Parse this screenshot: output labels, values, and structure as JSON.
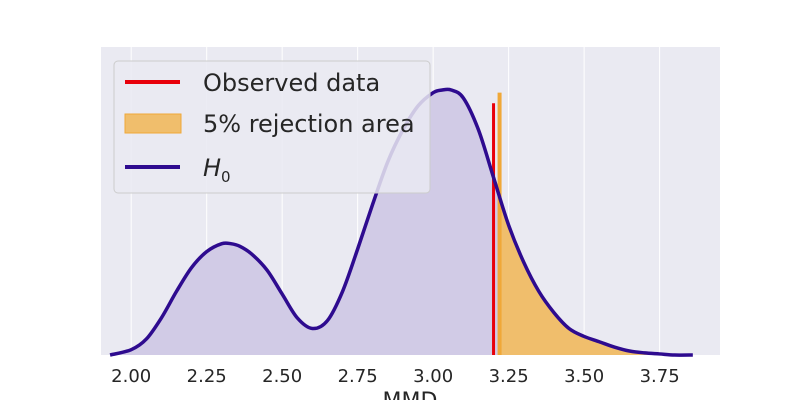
{
  "chart_data": {
    "type": "area",
    "title": "",
    "xlabel": "MMD",
    "ylabel": "",
    "xlim": [
      1.9,
      3.95
    ],
    "ylim": [
      0,
      1.0
    ],
    "x_ticks": [
      "2.00",
      "2.25",
      "2.50",
      "2.75",
      "3.00",
      "3.25",
      "3.50",
      "3.75"
    ],
    "x_tick_values": [
      2.0,
      2.25,
      2.5,
      2.75,
      3.0,
      3.25,
      3.5,
      3.75
    ],
    "grid": true,
    "legend_position": "top-left",
    "series": [
      {
        "name": "H_0",
        "label_main": "H",
        "label_sub": "0",
        "type": "density",
        "color": "#2e0b8f",
        "fill_color": "#d1cbe6",
        "x": [
          1.93,
          2.0,
          2.05,
          2.1,
          2.15,
          2.2,
          2.25,
          2.3,
          2.33,
          2.36,
          2.4,
          2.45,
          2.5,
          2.55,
          2.6,
          2.65,
          2.7,
          2.75,
          2.8,
          2.85,
          2.9,
          2.95,
          3.0,
          3.03,
          3.06,
          3.1,
          3.15,
          3.2,
          3.25,
          3.3,
          3.35,
          3.4,
          3.45,
          3.5,
          3.55,
          3.6,
          3.65,
          3.7,
          3.75,
          3.8,
          3.86
        ],
        "y": [
          0.0,
          0.02,
          0.06,
          0.14,
          0.24,
          0.33,
          0.39,
          0.42,
          0.42,
          0.41,
          0.38,
          0.32,
          0.23,
          0.14,
          0.1,
          0.13,
          0.24,
          0.4,
          0.57,
          0.73,
          0.85,
          0.94,
          0.99,
          1.0,
          1.0,
          0.97,
          0.85,
          0.67,
          0.49,
          0.35,
          0.24,
          0.16,
          0.1,
          0.07,
          0.05,
          0.03,
          0.015,
          0.008,
          0.004,
          0.0,
          0.0
        ]
      },
      {
        "name": "Observed data",
        "type": "vline",
        "x": 3.2,
        "height": 0.95,
        "color": "#e8000b"
      },
      {
        "name": "5% rejection area",
        "type": "shaded_tail",
        "x_start": 3.22,
        "marker_height": 0.99,
        "color": "#f0a838",
        "fill_color": "#f0be6c"
      }
    ]
  }
}
